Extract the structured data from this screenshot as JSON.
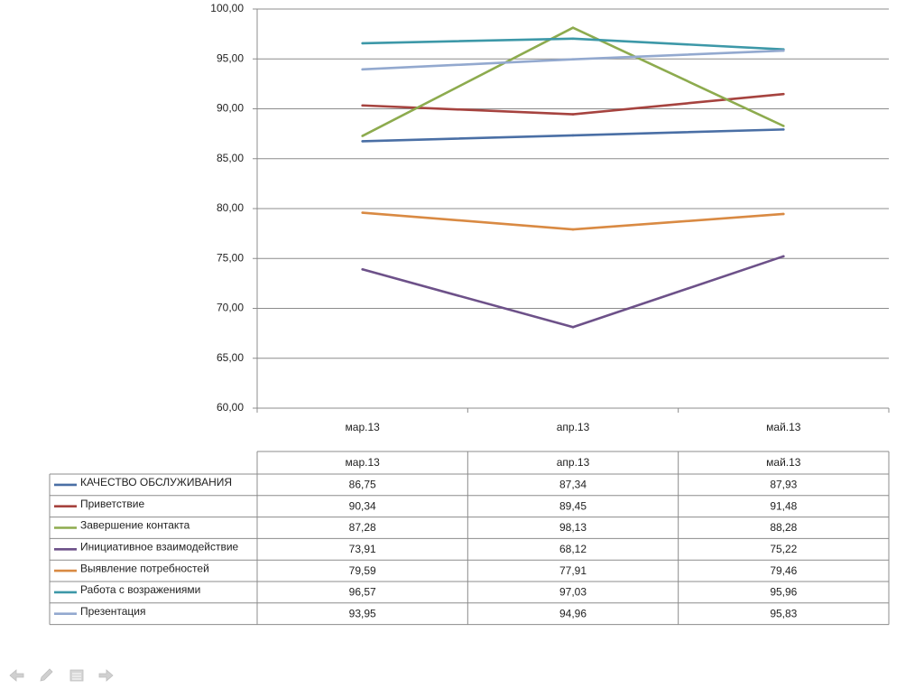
{
  "chart_data": {
    "type": "line",
    "categories": [
      "мар.13",
      "апр.13",
      "май.13"
    ],
    "ylim": [
      60,
      100
    ],
    "y_ticks": [
      "60,00",
      "65,00",
      "70,00",
      "75,00",
      "80,00",
      "85,00",
      "90,00",
      "95,00",
      "100,00"
    ],
    "grid": true,
    "legend_placement": "data-table-below",
    "series": [
      {
        "name": "КАЧЕСТВО ОБСЛУЖИВАНИЯ",
        "values": [
          86.75,
          87.34,
          87.93
        ],
        "labels": [
          "86,75",
          "87,34",
          "87,93"
        ],
        "color": "#4a6fa5"
      },
      {
        "name": "Приветствие",
        "values": [
          90.34,
          89.45,
          91.48
        ],
        "labels": [
          "90,34",
          "89,45",
          "91,48"
        ],
        "color": "#a6433f"
      },
      {
        "name": "Завершение контакта",
        "values": [
          87.28,
          98.13,
          88.28
        ],
        "labels": [
          "87,28",
          "98,13",
          "88,28"
        ],
        "color": "#8dab4e"
      },
      {
        "name": "Инициативное взаимодействие",
        "values": [
          73.91,
          68.12,
          75.22
        ],
        "labels": [
          "73,91",
          "68,12",
          "75,22"
        ],
        "color": "#6d5189"
      },
      {
        "name": "Выявление потребностей",
        "values": [
          79.59,
          77.91,
          79.46
        ],
        "labels": [
          "79,59",
          "77,91",
          "79,46"
        ],
        "color": "#d98a43"
      },
      {
        "name": "Работа с возражениями",
        "values": [
          96.57,
          97.03,
          95.96
        ],
        "labels": [
          "96,57",
          "97,03",
          "95,96"
        ],
        "color": "#3d98a8"
      },
      {
        "name": "Презентация",
        "values": [
          93.95,
          94.96,
          95.83
        ],
        "labels": [
          "93,95",
          "94,96",
          "95,83"
        ],
        "color": "#93a9cf"
      }
    ]
  },
  "nav": {
    "icons": [
      "arrow-left-icon",
      "pen-icon",
      "menu-icon",
      "arrow-right-icon"
    ],
    "icon_color": "#c8c8c8"
  }
}
